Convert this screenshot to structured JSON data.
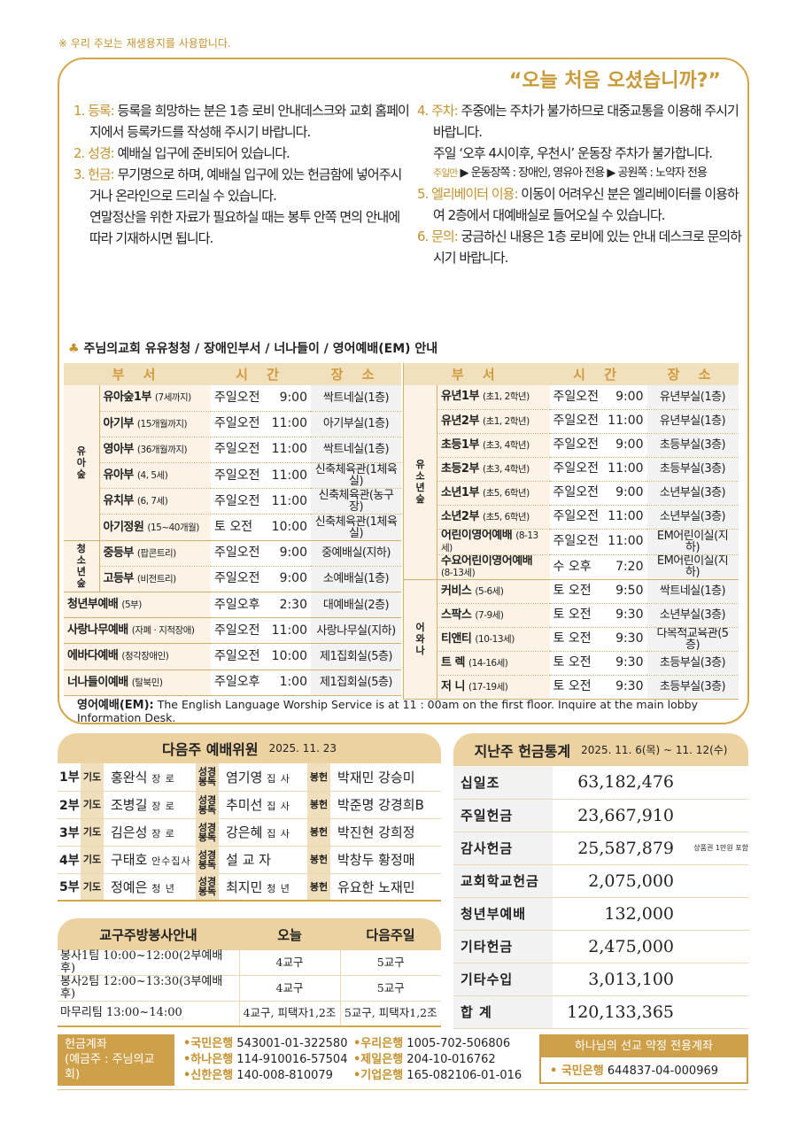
{
  "notice": "※ 우리 주보는 재생용지를 사용합니다.",
  "welcome": {
    "title": "“오늘 처음 오셨습니까?”",
    "left": [
      {
        "label": "1. 등록:",
        "text": "등록을 희망하는 분은 1층 로비 안내데스크와 교회 홈페이지에서 등록카드를 작성해 주시기 바랍니다."
      },
      {
        "label": "2. 성경:",
        "text": "예배실 입구에 준비되어 있습니다."
      },
      {
        "label": "3. 헌금:",
        "text": "무기명으로 하며, 예배실 입구에 있는 헌금함에 넣어주시거나 온라인으로 드리실 수 있습니다.",
        "extra": "연말정산을 위한 자료가 필요하실 때는 봉투 안쪽 면의 안내에 따라 기재하시면 됩니다."
      }
    ],
    "right": [
      {
        "label": "4. 주차:",
        "text": "주중에는 주차가 불가하므로 대중교통을 이용해 주시기 바랍니다.",
        "extra": "주일 ‘오후 4시이후, 우천시’ 운동장 주차가 불가합니다."
      },
      {
        "label": "5. 엘리베이터 이용:",
        "text": "이동이 어려우신 분은 엘리베이터를 이용하여 2층에서 대예배실로 들어오실 수 있습니다."
      },
      {
        "label": "6. 문의:",
        "text": "궁금하신 내용은 1층 로비에 있는 안내 데스크로 문의하시기 바랍니다."
      }
    ],
    "parking_sub": {
      "key": "주일만",
      "a": "▶ 운동장쪽 : 장애인, 영유아 전용",
      "b": "▶ 공원쪽 : 노약자 전용"
    }
  },
  "schedule": {
    "title": "주님의교회 유유청청 / 장애인부서 / 너나들이 / 영어예배(EM) 안내",
    "headers": [
      "부 서",
      "시 간",
      "장 소"
    ],
    "left": [
      {
        "group": "유아숲",
        "rows": [
          [
            "유아숲1부",
            "(7세까지)",
            "주일오전",
            "9:00",
            "싹트네실(1층)"
          ],
          [
            "아기부",
            "(15개월까지)",
            "주일오전",
            "11:00",
            "아기부실(1층)"
          ],
          [
            "영아부",
            "(36개월까지)",
            "주일오전",
            "11:00",
            "싹트네실(1층)"
          ],
          [
            "유아부",
            "(4, 5세)",
            "주일오전",
            "11:00",
            "신축체육관(1체육실)"
          ],
          [
            "유치부",
            "(6, 7세)",
            "주일오전",
            "11:00",
            "신축체육관(농구장)"
          ],
          [
            "아기정원",
            "(15~40개월)",
            "토 오전",
            "10:00",
            "신축체육관(1체육실)"
          ]
        ]
      },
      {
        "group": "청소년숲",
        "rows": [
          [
            "중등부",
            "(팝콘트리)",
            "주일오전",
            "9:00",
            "중예배실(지하)"
          ],
          [
            "고등부",
            "(비전트리)",
            "주일오전",
            "9:00",
            "소예배실(1층)"
          ]
        ]
      },
      {
        "group": "",
        "rows": [
          [
            "청년부예배",
            "(5부)",
            "주일오후",
            "2:30",
            "대예배실(2층)"
          ],
          [
            "사랑나무예배",
            "(자폐 · 지적장애)",
            "주일오전",
            "11:00",
            "사랑나무실(지하)"
          ],
          [
            "에바다예배",
            "(청각장애인)",
            "주일오전",
            "10:00",
            "제1집회실(5층)"
          ],
          [
            "너나들이예배",
            "(탈북민)",
            "주일오후",
            "1:00",
            "제1집회실(5층)"
          ]
        ]
      }
    ],
    "right": [
      {
        "group": "유소년숲",
        "rows": [
          [
            "유년1부",
            "(초1, 2학년)",
            "주일오전",
            "9:00",
            "유년부실(1층)"
          ],
          [
            "유년2부",
            "(초1, 2학년)",
            "주일오전",
            "11:00",
            "유년부실(1층)"
          ],
          [
            "초등1부",
            "(초3, 4학년)",
            "주일오전",
            "9:00",
            "초등부실(3층)"
          ],
          [
            "초등2부",
            "(초3, 4학년)",
            "주일오전",
            "11:00",
            "초등부실(3층)"
          ],
          [
            "소년1부",
            "(초5, 6학년)",
            "주일오전",
            "9:00",
            "소년부실(3층)"
          ],
          [
            "소년2부",
            "(초5, 6학년)",
            "주일오전",
            "11:00",
            "소년부실(3층)"
          ],
          [
            "어린이영어예배",
            "(8-13세)",
            "주일오전",
            "11:00",
            "EM어린이실(지하)"
          ],
          [
            "수요어린이영어예배",
            "(8-13세)",
            "수 오후",
            "7:20",
            "EM어린이실(지하)"
          ]
        ]
      },
      {
        "group": "어와나",
        "rows": [
          [
            "커비스",
            "(5-6세)",
            "토 오전",
            "9:50",
            "싹트네실(1층)"
          ],
          [
            "스팍스",
            "(7-9세)",
            "토 오전",
            "9:30",
            "소년부실(3층)"
          ],
          [
            "티앤티",
            "(10-13세)",
            "토 오전",
            "9:30",
            "다목적교육관(5층)"
          ],
          [
            "트 렉",
            "(14-16세)",
            "토 오전",
            "9:30",
            "초등부실(3층)"
          ],
          [
            "저 니",
            "(17-19세)",
            "토 오전",
            "9:30",
            "초등부실(3층)"
          ]
        ]
      }
    ],
    "em_label": "영어예배(EM):",
    "em_text": "The English Language Worship Service is at 11 : 00am on the first floor. Inquire at the main lobby Information Desk."
  },
  "committee": {
    "title": "다음주 예배위원",
    "date": "2025. 11. 23",
    "rows": [
      [
        "1부",
        "기도",
        "홍완식",
        "장 로",
        "성경봉독",
        "염기영",
        "집 사",
        "봉헌",
        "박재민  강승미"
      ],
      [
        "2부",
        "기도",
        "조병길",
        "장 로",
        "성경봉독",
        "추미선",
        "집 사",
        "봉헌",
        "박준명  강경희B"
      ],
      [
        "3부",
        "기도",
        "김은성",
        "장 로",
        "성경봉독",
        "강은혜",
        "집 사",
        "봉헌",
        "박진현  강희정"
      ],
      [
        "4부",
        "기도",
        "구태호",
        "안수집사",
        "성경봉독",
        "설  교  자",
        "",
        "봉헌",
        "박창두  황정매"
      ],
      [
        "5부",
        "기도",
        "정예은",
        "청 년",
        "성경봉독",
        "최지민",
        "청 년",
        "봉헌",
        "유요한  노재민"
      ]
    ]
  },
  "offering": {
    "title": "지난주 헌금통계",
    "period": "2025. 11. 6(목) ~ 11. 12(수)",
    "rows": [
      [
        "십일조",
        "63,182,476",
        ""
      ],
      [
        "주일헌금",
        "23,667,910",
        ""
      ],
      [
        "감사헌금",
        "25,587,879",
        "상품권 1만원 포함"
      ],
      [
        "교회학교헌금",
        "2,075,000",
        ""
      ],
      [
        "청년부예배",
        "132,000",
        ""
      ],
      [
        "기타헌금",
        "2,475,000",
        ""
      ],
      [
        "기타수입",
        "3,013,100",
        ""
      ],
      [
        "합  계",
        "120,133,365",
        ""
      ]
    ]
  },
  "service": {
    "headers": [
      "교구주방봉사안내",
      "오늘",
      "다음주일"
    ],
    "rows": [
      [
        "봉사1팀 10:00~12:00(2부예배후)",
        "4교구",
        "5교구"
      ],
      [
        "봉사2팀 12:00~13:30(3부예배후)",
        "4교구",
        "5교구"
      ],
      [
        "마무리팀 13:00~14:00",
        "4교구, 피택자1,2조",
        "5교구, 피택자1,2조"
      ]
    ]
  },
  "accounts": {
    "label1": "헌금계좌",
    "label2": "(예금주 : 주님의교회)",
    "list": [
      [
        "•국민은행",
        "543001-01-322580"
      ],
      [
        "•우리은행",
        "1005-702-506806"
      ],
      [
        "•하나은행",
        "114-910016-57504"
      ],
      [
        "•제일은행",
        "204-10-016762"
      ],
      [
        "•신한은행",
        "140-008-810079"
      ],
      [
        "•기업은행",
        "165-082106-01-016"
      ]
    ],
    "special_title": "하나님의 선교 약정 전용계좌",
    "special": [
      "• 국민은행",
      "644837-04-000969"
    ]
  },
  "colors": {
    "gold": "#c4922e",
    "header": "#ecd2a0",
    "border": "#d3a649"
  }
}
